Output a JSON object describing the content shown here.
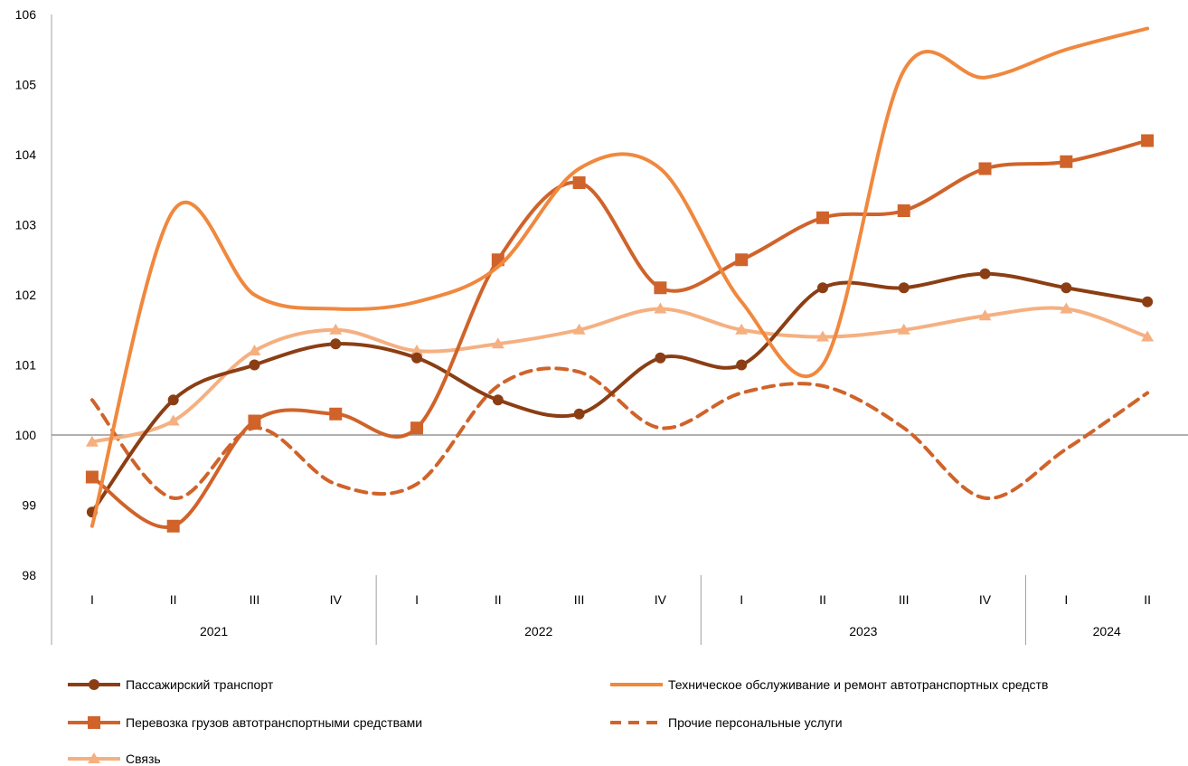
{
  "chart_data": {
    "type": "line",
    "title": "",
    "xlabel": "",
    "ylabel": "",
    "ylim": [
      98,
      106
    ],
    "yticks": [
      98,
      99,
      100,
      101,
      102,
      103,
      104,
      105,
      106
    ],
    "reference_line": 100,
    "smooth": true,
    "grid": false,
    "legend_position": "bottom",
    "categories": [
      "I",
      "II",
      "III",
      "IV",
      "I",
      "II",
      "III",
      "IV",
      "I",
      "II",
      "III",
      "IV",
      "I",
      "II"
    ],
    "years": [
      {
        "label": "2021",
        "count": 4
      },
      {
        "label": "2022",
        "count": 4
      },
      {
        "label": "2023",
        "count": 4
      },
      {
        "label": "2024",
        "count": 2
      }
    ],
    "series": [
      {
        "name": "Пассажирский транспорт",
        "color": "#8B3E14",
        "marker": "circle",
        "dash": false,
        "width": 4,
        "values": [
          98.9,
          100.5,
          101.0,
          101.3,
          101.1,
          100.5,
          100.3,
          101.1,
          101.0,
          102.1,
          102.1,
          102.3,
          102.1,
          101.9
        ]
      },
      {
        "name": "Техническое обслуживание и ремонт автотранспортных средств",
        "color": "#F0883E",
        "marker": "none",
        "dash": false,
        "width": 4,
        "values": [
          98.7,
          103.2,
          102.0,
          101.8,
          101.9,
          102.4,
          103.8,
          103.8,
          101.9,
          101.0,
          105.2,
          105.1,
          105.5,
          105.8
        ]
      },
      {
        "name": "Перевозка грузов автотранспортными средствами",
        "color": "#D0632A",
        "marker": "square",
        "dash": false,
        "width": 4,
        "values": [
          99.4,
          98.7,
          100.2,
          100.3,
          100.1,
          102.5,
          103.6,
          102.1,
          102.5,
          103.1,
          103.2,
          103.8,
          103.9,
          104.2
        ]
      },
      {
        "name": "Прочие персональные услуги",
        "color": "#D0632A",
        "marker": "none",
        "dash": true,
        "width": 4,
        "values": [
          100.5,
          99.1,
          100.1,
          99.3,
          99.3,
          100.7,
          100.9,
          100.1,
          100.6,
          100.7,
          100.1,
          99.1,
          99.8,
          100.6
        ]
      },
      {
        "name": "Связь",
        "color": "#F5B081",
        "marker": "triangle",
        "dash": false,
        "width": 4,
        "values": [
          99.9,
          100.2,
          101.2,
          101.5,
          101.2,
          101.3,
          101.5,
          101.8,
          101.5,
          101.4,
          101.5,
          101.7,
          101.8,
          101.4
        ]
      }
    ],
    "legend": [
      "Пассажирский транспорт",
      "Техническое обслуживание и ремонт автотранспортных средств",
      "Перевозка грузов автотранспортными средствами",
      "Прочие персональные услуги",
      "Связь"
    ]
  }
}
